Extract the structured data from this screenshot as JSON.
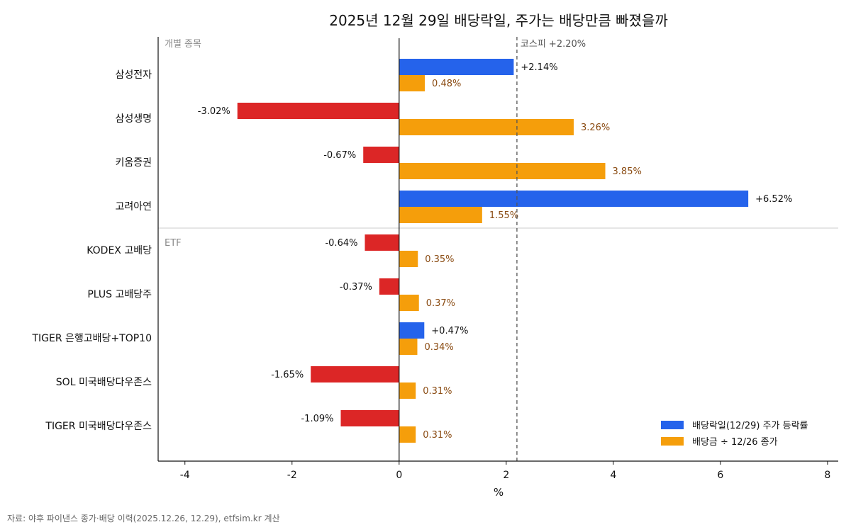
{
  "chart_data": {
    "type": "bar",
    "orientation": "horizontal",
    "title": "2025년 12월 29일 배당락일, 주가는 배당만큼 빠졌을까",
    "xlabel": "%",
    "ylabel": "",
    "xlim": [
      -4.5,
      8.2
    ],
    "xticks": [
      -4,
      -2,
      0,
      2,
      4,
      6,
      8
    ],
    "xtick_labels": [
      "-4",
      "-2",
      "0",
      "2",
      "4",
      "6",
      "8"
    ],
    "grid": false,
    "legend_position": "bottom-right",
    "groups": [
      {
        "label": "개별 종목",
        "start": 0,
        "end": 3
      },
      {
        "label": "ETF",
        "start": 4,
        "end": 8
      }
    ],
    "categories": [
      "삼성전자",
      "삼성생명",
      "키움증권",
      "고려아연",
      "KODEX 고배당",
      "PLUS 고배당주",
      "TIGER 은행고배당+TOP10",
      "SOL 미국배당다우존스",
      "TIGER 미국배당다우존스"
    ],
    "series": [
      {
        "name": "배당락일(12/29) 주가 등락률",
        "values": [
          2.14,
          -3.02,
          -0.67,
          6.52,
          -0.64,
          -0.37,
          0.47,
          -1.65,
          -1.09
        ],
        "labels": [
          "+2.14%",
          "-3.02%",
          "-0.67%",
          "+6.52%",
          "-0.64%",
          "-0.37%",
          "+0.47%",
          "-1.65%",
          "-1.09%"
        ],
        "color_positive": "#2563EB",
        "color_negative": "#DC2626"
      },
      {
        "name": "배당금 ÷ 12/26 종가",
        "values": [
          0.48,
          3.26,
          3.85,
          1.55,
          0.35,
          0.37,
          0.34,
          0.31,
          0.31
        ],
        "labels": [
          "0.48%",
          "3.26%",
          "3.85%",
          "1.55%",
          "0.35%",
          "0.37%",
          "0.34%",
          "0.31%",
          "0.31%"
        ],
        "color": "#F59E0B"
      }
    ],
    "reference_line": {
      "value": 2.2,
      "label": "코스피 +2.20%",
      "style": "dashed",
      "color": "#555555"
    },
    "source_note": "자료: 야후 파이낸스 종가·배당 이력(2025.12.26, 12.29), etfsim.kr 계산"
  },
  "colors": {
    "label_positive": "#111111",
    "label_dividend": "#8a4b12",
    "axis": "#111111",
    "group_separator": "#cccccc"
  }
}
